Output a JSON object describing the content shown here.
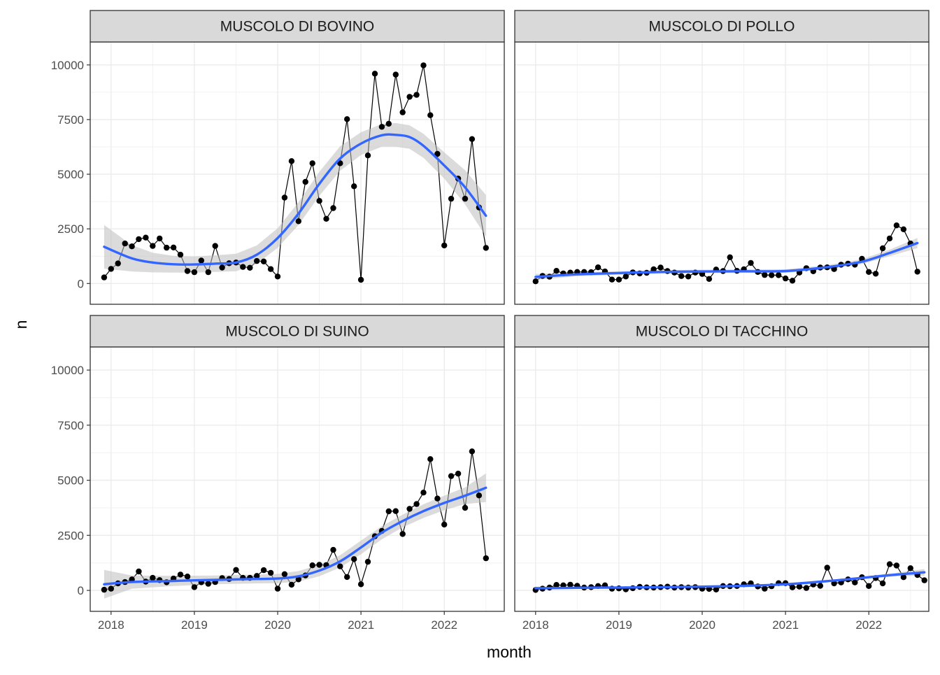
{
  "chart_data": {
    "type": "line",
    "facets": true,
    "xlabel": "month",
    "ylabel": "n",
    "xlim": [
      2017.75,
      2022.72
    ],
    "ylim": [
      -950,
      11050
    ],
    "x_ticks": [
      2018,
      2019,
      2020,
      2021,
      2022
    ],
    "y_ticks": [
      0,
      2500,
      5000,
      7500,
      10000
    ],
    "grid": true,
    "smooth_color": "#3366FF",
    "point_color": "#000000",
    "ribbon_color": "#BEBEBE",
    "strip_fill": "#D9D9D9",
    "panels": [
      {
        "title": "MUSCOLO DI BOVINO",
        "points": [
          [
            2017.917,
            280
          ],
          [
            2018.0,
            670
          ],
          [
            2018.083,
            920
          ],
          [
            2018.167,
            1830
          ],
          [
            2018.25,
            1700
          ],
          [
            2018.333,
            2030
          ],
          [
            2018.417,
            2100
          ],
          [
            2018.5,
            1720
          ],
          [
            2018.583,
            2060
          ],
          [
            2018.667,
            1640
          ],
          [
            2018.75,
            1650
          ],
          [
            2018.833,
            1320
          ],
          [
            2018.917,
            570
          ],
          [
            2019.0,
            520
          ],
          [
            2019.083,
            1050
          ],
          [
            2019.167,
            520
          ],
          [
            2019.25,
            1720
          ],
          [
            2019.333,
            730
          ],
          [
            2019.417,
            930
          ],
          [
            2019.5,
            960
          ],
          [
            2019.583,
            760
          ],
          [
            2019.667,
            720
          ],
          [
            2019.75,
            1030
          ],
          [
            2019.833,
            1010
          ],
          [
            2019.917,
            660
          ],
          [
            2020.0,
            320
          ],
          [
            2020.083,
            3930
          ],
          [
            2020.167,
            5600
          ],
          [
            2020.25,
            2850
          ],
          [
            2020.333,
            4650
          ],
          [
            2020.417,
            5500
          ],
          [
            2020.5,
            3780
          ],
          [
            2020.583,
            2960
          ],
          [
            2020.667,
            3450
          ],
          [
            2020.75,
            5500
          ],
          [
            2020.833,
            7520
          ],
          [
            2020.917,
            4450
          ],
          [
            2021.0,
            170
          ],
          [
            2021.083,
            5860
          ],
          [
            2021.167,
            9600
          ],
          [
            2021.25,
            7170
          ],
          [
            2021.333,
            7310
          ],
          [
            2021.417,
            9560
          ],
          [
            2021.5,
            7830
          ],
          [
            2021.583,
            8540
          ],
          [
            2021.667,
            8630
          ],
          [
            2021.75,
            9980
          ],
          [
            2021.833,
            7700
          ],
          [
            2021.917,
            5930
          ],
          [
            2022.0,
            1740
          ],
          [
            2022.083,
            3880
          ],
          [
            2022.167,
            4800
          ],
          [
            2022.25,
            3880
          ],
          [
            2022.333,
            6610
          ],
          [
            2022.417,
            3480
          ],
          [
            2022.5,
            1630
          ]
        ],
        "smooth": [
          [
            2017.917,
            1680
          ],
          [
            2018.25,
            1150
          ],
          [
            2018.5,
            960
          ],
          [
            2018.75,
            880
          ],
          [
            2019.0,
            870
          ],
          [
            2019.25,
            910
          ],
          [
            2019.5,
            960
          ],
          [
            2019.75,
            1320
          ],
          [
            2020.0,
            2080
          ],
          [
            2020.25,
            3200
          ],
          [
            2020.5,
            4560
          ],
          [
            2020.75,
            5720
          ],
          [
            2021.0,
            6400
          ],
          [
            2021.25,
            6780
          ],
          [
            2021.417,
            6800
          ],
          [
            2021.583,
            6700
          ],
          [
            2021.75,
            6300
          ],
          [
            2022.0,
            5400
          ],
          [
            2022.25,
            4400
          ],
          [
            2022.5,
            3100
          ]
        ],
        "se": [
          1000,
          600,
          450,
          380,
          370,
          380,
          400,
          420,
          450,
          520,
          550,
          560,
          520,
          520,
          540,
          540,
          550,
          600,
          780,
          950
        ]
      },
      {
        "title": "MUSCOLO DI POLLO",
        "points": [
          [
            2018.0,
            100
          ],
          [
            2018.083,
            350
          ],
          [
            2018.167,
            310
          ],
          [
            2018.25,
            580
          ],
          [
            2018.333,
            460
          ],
          [
            2018.417,
            500
          ],
          [
            2018.5,
            530
          ],
          [
            2018.583,
            530
          ],
          [
            2018.667,
            520
          ],
          [
            2018.75,
            740
          ],
          [
            2018.833,
            550
          ],
          [
            2018.917,
            180
          ],
          [
            2019.0,
            180
          ],
          [
            2019.083,
            320
          ],
          [
            2019.167,
            510
          ],
          [
            2019.25,
            460
          ],
          [
            2019.333,
            490
          ],
          [
            2019.417,
            650
          ],
          [
            2019.5,
            730
          ],
          [
            2019.583,
            570
          ],
          [
            2019.667,
            500
          ],
          [
            2019.75,
            340
          ],
          [
            2019.833,
            320
          ],
          [
            2019.917,
            500
          ],
          [
            2020.0,
            440
          ],
          [
            2020.083,
            210
          ],
          [
            2020.167,
            640
          ],
          [
            2020.25,
            570
          ],
          [
            2020.333,
            1200
          ],
          [
            2020.417,
            580
          ],
          [
            2020.5,
            650
          ],
          [
            2020.583,
            940
          ],
          [
            2020.667,
            530
          ],
          [
            2020.75,
            390
          ],
          [
            2020.833,
            380
          ],
          [
            2020.917,
            380
          ],
          [
            2021.0,
            230
          ],
          [
            2021.083,
            130
          ],
          [
            2021.167,
            500
          ],
          [
            2021.25,
            700
          ],
          [
            2021.333,
            560
          ],
          [
            2021.417,
            730
          ],
          [
            2021.5,
            740
          ],
          [
            2021.583,
            660
          ],
          [
            2021.667,
            860
          ],
          [
            2021.75,
            910
          ],
          [
            2021.833,
            860
          ],
          [
            2021.917,
            1130
          ],
          [
            2022.0,
            530
          ],
          [
            2022.083,
            450
          ],
          [
            2022.167,
            1610
          ],
          [
            2022.25,
            2060
          ],
          [
            2022.333,
            2660
          ],
          [
            2022.417,
            2480
          ],
          [
            2022.5,
            1830
          ],
          [
            2022.583,
            540
          ]
        ],
        "smooth": [
          [
            2018.0,
            300
          ],
          [
            2018.5,
            420
          ],
          [
            2019.0,
            480
          ],
          [
            2019.5,
            530
          ],
          [
            2020.0,
            550
          ],
          [
            2020.5,
            560
          ],
          [
            2021.0,
            570
          ],
          [
            2021.5,
            750
          ],
          [
            2021.917,
            1000
          ],
          [
            2022.25,
            1400
          ],
          [
            2022.583,
            1850
          ]
        ],
        "se": [
          140,
          90,
          80,
          80,
          80,
          80,
          80,
          90,
          110,
          150,
          230
        ]
      },
      {
        "title": "MUSCOLO DI SUINO",
        "points": [
          [
            2017.917,
            30
          ],
          [
            2018.0,
            80
          ],
          [
            2018.083,
            320
          ],
          [
            2018.167,
            380
          ],
          [
            2018.25,
            500
          ],
          [
            2018.333,
            860
          ],
          [
            2018.417,
            400
          ],
          [
            2018.5,
            570
          ],
          [
            2018.583,
            470
          ],
          [
            2018.667,
            370
          ],
          [
            2018.75,
            540
          ],
          [
            2018.833,
            720
          ],
          [
            2018.917,
            630
          ],
          [
            2019.0,
            150
          ],
          [
            2019.083,
            370
          ],
          [
            2019.167,
            300
          ],
          [
            2019.25,
            380
          ],
          [
            2019.333,
            560
          ],
          [
            2019.417,
            520
          ],
          [
            2019.5,
            930
          ],
          [
            2019.583,
            570
          ],
          [
            2019.667,
            570
          ],
          [
            2019.75,
            660
          ],
          [
            2019.833,
            920
          ],
          [
            2019.917,
            800
          ],
          [
            2020.0,
            80
          ],
          [
            2020.083,
            740
          ],
          [
            2020.167,
            260
          ],
          [
            2020.25,
            500
          ],
          [
            2020.333,
            680
          ],
          [
            2020.417,
            1140
          ],
          [
            2020.5,
            1160
          ],
          [
            2020.583,
            1150
          ],
          [
            2020.667,
            1840
          ],
          [
            2020.75,
            1090
          ],
          [
            2020.833,
            610
          ],
          [
            2020.917,
            1420
          ],
          [
            2021.0,
            280
          ],
          [
            2021.083,
            1300
          ],
          [
            2021.167,
            2460
          ],
          [
            2021.25,
            2700
          ],
          [
            2021.333,
            3590
          ],
          [
            2021.417,
            3600
          ],
          [
            2021.5,
            2560
          ],
          [
            2021.583,
            3700
          ],
          [
            2021.667,
            3920
          ],
          [
            2021.75,
            4440
          ],
          [
            2021.833,
            5960
          ],
          [
            2021.917,
            4170
          ],
          [
            2022.0,
            2990
          ],
          [
            2022.083,
            5190
          ],
          [
            2022.167,
            5300
          ],
          [
            2022.25,
            3750
          ],
          [
            2022.333,
            6310
          ],
          [
            2022.417,
            4310
          ],
          [
            2022.5,
            1460
          ]
        ],
        "smooth": [
          [
            2017.917,
            280
          ],
          [
            2018.25,
            380
          ],
          [
            2018.75,
            430
          ],
          [
            2019.25,
            480
          ],
          [
            2019.75,
            520
          ],
          [
            2020.0,
            540
          ],
          [
            2020.25,
            640
          ],
          [
            2020.5,
            900
          ],
          [
            2020.75,
            1320
          ],
          [
            2021.0,
            1950
          ],
          [
            2021.25,
            2620
          ],
          [
            2021.5,
            3150
          ],
          [
            2021.75,
            3600
          ],
          [
            2022.0,
            3970
          ],
          [
            2022.25,
            4300
          ],
          [
            2022.5,
            4660
          ]
        ],
        "se": [
          650,
          300,
          230,
          200,
          200,
          210,
          240,
          260,
          280,
          310,
          300,
          290,
          310,
          330,
          380,
          650
        ]
      },
      {
        "title": "MUSCOLO DI TACCHINO",
        "points": [
          [
            2018.0,
            20
          ],
          [
            2018.083,
            80
          ],
          [
            2018.167,
            130
          ],
          [
            2018.25,
            250
          ],
          [
            2018.333,
            230
          ],
          [
            2018.417,
            260
          ],
          [
            2018.5,
            210
          ],
          [
            2018.583,
            130
          ],
          [
            2018.667,
            150
          ],
          [
            2018.75,
            200
          ],
          [
            2018.833,
            230
          ],
          [
            2018.917,
            80
          ],
          [
            2019.0,
            90
          ],
          [
            2019.083,
            50
          ],
          [
            2019.167,
            100
          ],
          [
            2019.25,
            160
          ],
          [
            2019.333,
            140
          ],
          [
            2019.417,
            130
          ],
          [
            2019.5,
            150
          ],
          [
            2019.583,
            170
          ],
          [
            2019.667,
            130
          ],
          [
            2019.75,
            150
          ],
          [
            2019.833,
            130
          ],
          [
            2019.917,
            150
          ],
          [
            2020.0,
            80
          ],
          [
            2020.083,
            70
          ],
          [
            2020.167,
            40
          ],
          [
            2020.25,
            200
          ],
          [
            2020.333,
            190
          ],
          [
            2020.417,
            200
          ],
          [
            2020.5,
            280
          ],
          [
            2020.583,
            320
          ],
          [
            2020.667,
            180
          ],
          [
            2020.75,
            80
          ],
          [
            2020.833,
            190
          ],
          [
            2020.917,
            330
          ],
          [
            2021.0,
            330
          ],
          [
            2021.083,
            140
          ],
          [
            2021.167,
            170
          ],
          [
            2021.25,
            110
          ],
          [
            2021.333,
            270
          ],
          [
            2021.417,
            210
          ],
          [
            2021.5,
            1030
          ],
          [
            2021.583,
            320
          ],
          [
            2021.667,
            360
          ],
          [
            2021.75,
            500
          ],
          [
            2021.833,
            360
          ],
          [
            2021.917,
            600
          ],
          [
            2022.0,
            200
          ],
          [
            2022.083,
            560
          ],
          [
            2022.167,
            320
          ],
          [
            2022.25,
            1190
          ],
          [
            2022.333,
            1130
          ],
          [
            2022.417,
            600
          ],
          [
            2022.5,
            1010
          ],
          [
            2022.583,
            700
          ],
          [
            2022.667,
            460
          ]
        ],
        "smooth": [
          [
            2018.0,
            100
          ],
          [
            2018.5,
            120
          ],
          [
            2019.0,
            130
          ],
          [
            2019.5,
            150
          ],
          [
            2020.0,
            170
          ],
          [
            2020.5,
            210
          ],
          [
            2021.0,
            280
          ],
          [
            2021.5,
            420
          ],
          [
            2022.0,
            600
          ],
          [
            2022.333,
            720
          ],
          [
            2022.667,
            820
          ]
        ],
        "se": [
          70,
          50,
          45,
          45,
          45,
          45,
          45,
          50,
          60,
          80,
          150
        ]
      }
    ]
  }
}
